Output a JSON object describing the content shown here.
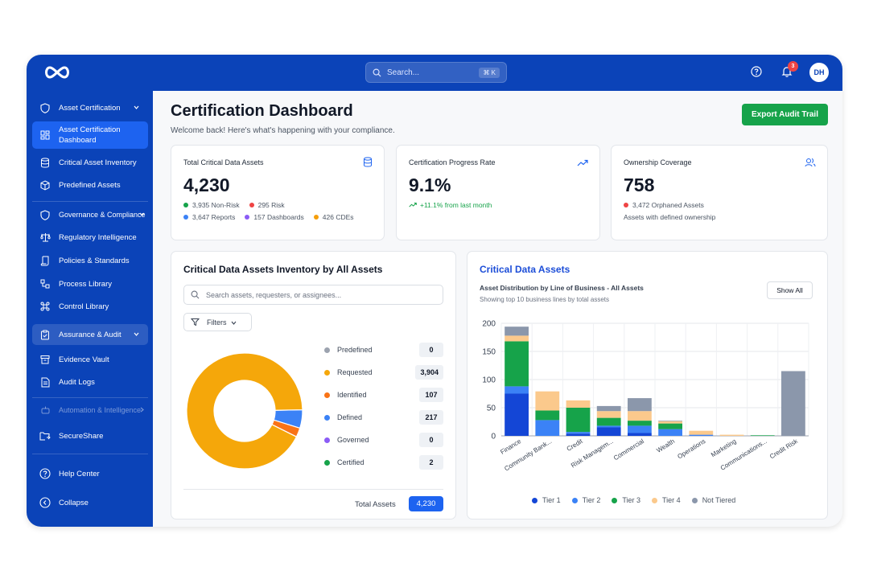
{
  "topbar": {
    "search_placeholder": "Search...",
    "search_shortcut": "⌘ K",
    "notification_count": "3",
    "user_initials": "DH"
  },
  "sidebar": {
    "items": [
      {
        "label": "Asset Certification",
        "icon": "shield-icon"
      },
      {
        "label": "Asset Certification Dashboard",
        "line1": "Asset Certification",
        "line2": "Dashboard",
        "icon": "dashboard-grid-icon"
      },
      {
        "label": "Critical Asset Inventory",
        "icon": "database-icon"
      },
      {
        "label": "Predefined Assets",
        "icon": "box-icon"
      },
      {
        "label": "Governance & Compliance",
        "icon": "shield-icon"
      },
      {
        "label": "Regulatory Intelligence",
        "icon": "scale-icon"
      },
      {
        "label": "Policies & Standards",
        "icon": "scroll-icon"
      },
      {
        "label": "Process Library",
        "icon": "workflow-icon"
      },
      {
        "label": "Control Library",
        "icon": "command-icon"
      },
      {
        "label": "Assurance & Audit",
        "icon": "clipboard-check-icon"
      },
      {
        "label": "Evidence Vault",
        "icon": "archive-icon"
      },
      {
        "label": "Audit Logs",
        "icon": "file-text-icon"
      },
      {
        "label": "Automation & Intelligence",
        "icon": "bot-icon"
      },
      {
        "label": "SecureShare",
        "icon": "folder-share-icon"
      }
    ],
    "help_label": "Help Center",
    "collapse_label": "Collapse"
  },
  "header": {
    "title": "Certification Dashboard",
    "subtitle": "Welcome back! Here's what's happening with your compliance.",
    "export_label": "Export Audit Trail"
  },
  "kpis": {
    "total": {
      "title": "Total Critical Data Assets",
      "value": "4,230",
      "non_risk": "3,935 Non-Risk",
      "risk": "295 Risk",
      "reports": "3,647 Reports",
      "dashboards": "157 Dashboards",
      "cdes": "426 CDEs"
    },
    "progress": {
      "title": "Certification Progress Rate",
      "value": "9.1%",
      "change": "+11.1% from last month"
    },
    "ownership": {
      "title": "Ownership Coverage",
      "value": "758",
      "orphaned": "3,472 Orphaned Assets",
      "note": "Assets with defined ownership"
    }
  },
  "colors": {
    "brand": "#0b43b8",
    "green": "#16a34a",
    "red": "#ef4444",
    "blue": "#3b82f6",
    "purple": "#8b5cf6",
    "amber": "#f59e0b",
    "orange": "#f97316"
  },
  "inventory": {
    "title": "Critical Data Assets Inventory by All Assets",
    "search_placeholder": "Search assets, requesters, or assignees...",
    "filters_label": "Filters",
    "statuses": [
      {
        "label": "Predefined",
        "count": "0",
        "value": 0,
        "color": "#9ca3af"
      },
      {
        "label": "Requested",
        "count": "3,904",
        "value": 3904,
        "color": "#f5a70a"
      },
      {
        "label": "Identified",
        "count": "107",
        "value": 107,
        "color": "#f97316"
      },
      {
        "label": "Defined",
        "count": "217",
        "value": 217,
        "color": "#3b82f6"
      },
      {
        "label": "Governed",
        "count": "0",
        "value": 0,
        "color": "#8b5cf6"
      },
      {
        "label": "Certified",
        "count": "2",
        "value": 2,
        "color": "#16a34a"
      }
    ],
    "total_label": "Total Assets",
    "total_value": "4,230"
  },
  "chart_panel": {
    "title": "Critical Data Assets",
    "subtitle": "Asset Distribution by Line of Business - All Assets",
    "subtitle2": "Showing top 10 business lines by total assets",
    "show_all_label": "Show All"
  },
  "chart_data": {
    "type": "bar",
    "stacked": true,
    "categories": [
      "Finance",
      "Community Bank...",
      "Credit",
      "Risk Managem...",
      "Commercial",
      "Wealth",
      "Operations",
      "Marketing",
      "Communications...",
      "Credit Risk"
    ],
    "series": [
      {
        "name": "Tier 1",
        "color": "#1446d6",
        "values": [
          75,
          0,
          4,
          15,
          5,
          0,
          0,
          0,
          0,
          0
        ]
      },
      {
        "name": "Tier 2",
        "color": "#3b82f6",
        "values": [
          13,
          28,
          3,
          3,
          13,
          12,
          2,
          0,
          0,
          0
        ]
      },
      {
        "name": "Tier 3",
        "color": "#16a34a",
        "values": [
          80,
          17,
          43,
          14,
          9,
          10,
          0,
          0,
          1,
          0
        ]
      },
      {
        "name": "Tier 4",
        "color": "#fbc98c",
        "values": [
          10,
          34,
          13,
          12,
          17,
          4,
          7,
          2,
          0,
          0
        ]
      },
      {
        "name": "Not Tiered",
        "color": "#8b97ab",
        "values": [
          16,
          0,
          0,
          9,
          23,
          1,
          0,
          0,
          0,
          115
        ]
      }
    ],
    "ylim": [
      0,
      200
    ],
    "yticks": [
      "0",
      "50",
      "100",
      "150",
      "200"
    ],
    "grid": true,
    "legend_position": "bottom"
  }
}
